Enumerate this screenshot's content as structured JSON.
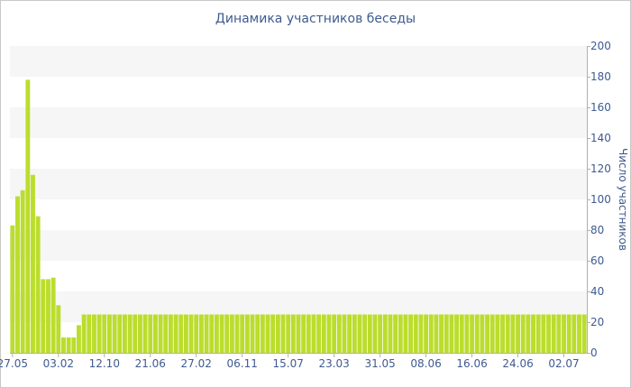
{
  "chart_data": {
    "type": "bar",
    "title": "Динамика участников беседы",
    "ylabel": "Число участников",
    "xlabel": "",
    "ylim": [
      0,
      200
    ],
    "yticks": [
      0,
      20,
      40,
      60,
      80,
      100,
      120,
      140,
      160,
      180,
      200
    ],
    "grid": "alternating horizontal bands",
    "y_axis_side": "right",
    "bar_color": "#bbdd2d",
    "band_color": "#f6f6f6",
    "text_color": "#3e5b8f",
    "x_tick_labels": [
      {
        "index": 0,
        "label": "27.05"
      },
      {
        "index": 9,
        "label": "03.02"
      },
      {
        "index": 18,
        "label": "12.10"
      },
      {
        "index": 27,
        "label": "21.06"
      },
      {
        "index": 36,
        "label": "27.02"
      },
      {
        "index": 45,
        "label": "06.11"
      },
      {
        "index": 54,
        "label": "15.07"
      },
      {
        "index": 63,
        "label": "23.03"
      },
      {
        "index": 72,
        "label": "31.05"
      },
      {
        "index": 81,
        "label": "08.06"
      },
      {
        "index": 90,
        "label": "16.06"
      },
      {
        "index": 99,
        "label": "24.06"
      },
      {
        "index": 108,
        "label": "02.07"
      }
    ],
    "values": [
      83,
      102,
      106,
      178,
      116,
      89,
      48,
      48,
      49,
      31,
      10,
      10,
      10,
      18,
      25,
      25,
      25,
      25,
      25,
      25,
      25,
      25,
      25,
      25,
      25,
      25,
      25,
      25,
      25,
      25,
      25,
      25,
      25,
      25,
      25,
      25,
      25,
      25,
      25,
      25,
      25,
      25,
      25,
      25,
      25,
      25,
      25,
      25,
      25,
      25,
      25,
      25,
      25,
      25,
      25,
      25,
      25,
      25,
      25,
      25,
      25,
      25,
      25,
      25,
      25,
      25,
      25,
      25,
      25,
      25,
      25,
      25,
      25,
      25,
      25,
      25,
      25,
      25,
      25,
      25,
      25,
      25,
      25,
      25,
      25,
      25,
      25,
      25,
      25,
      25,
      25,
      25,
      25,
      25,
      25,
      25,
      25,
      25,
      25,
      25,
      25,
      25,
      25,
      25,
      25,
      25,
      25,
      25,
      25,
      25,
      25,
      25,
      25
    ]
  }
}
